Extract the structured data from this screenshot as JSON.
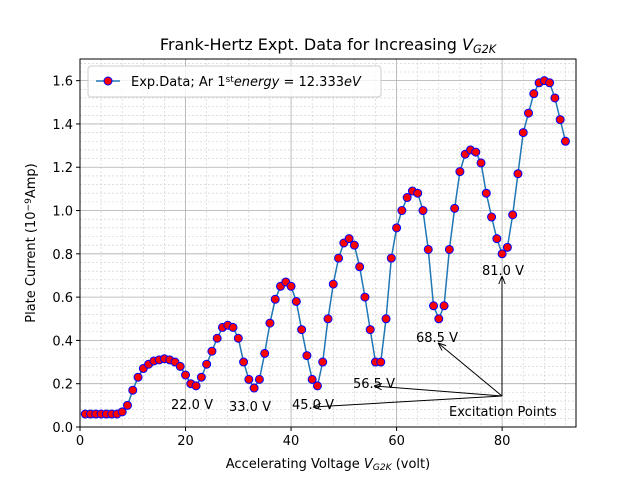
{
  "chart_data": {
    "type": "line",
    "title": [
      {
        "t": "Frank-Hertz Expt. Data for Increasing "
      },
      {
        "t": "V",
        "style": "italic"
      },
      {
        "t": "G2K",
        "style": "sub"
      }
    ],
    "xlabel": [
      {
        "t": "Accelerating Voltage "
      },
      {
        "t": "V",
        "style": "italic"
      },
      {
        "t": "G2K",
        "style": "sub"
      },
      {
        "t": " (volt)"
      }
    ],
    "ylabel": [
      {
        "t": "Plate Current (10"
      },
      {
        "t": "−9",
        "style": "sup"
      },
      {
        "t": "Amp)"
      }
    ],
    "x": [
      1,
      2,
      3,
      4,
      5,
      6,
      7,
      8,
      9,
      10,
      11,
      12,
      13,
      14,
      15,
      16,
      17,
      18,
      19,
      20,
      21,
      22,
      23,
      24,
      25,
      26,
      27,
      28,
      29,
      30,
      31,
      32,
      33,
      34,
      35,
      36,
      37,
      38,
      39,
      40,
      41,
      42,
      43,
      44,
      45,
      46,
      47,
      48,
      49,
      50,
      51,
      52,
      53,
      54,
      55,
      56,
      57,
      58,
      59,
      60,
      61,
      62,
      63,
      64,
      65,
      66,
      67,
      68,
      69,
      70,
      71,
      72,
      73,
      74,
      75,
      76,
      77,
      78,
      79,
      80,
      81,
      82,
      83,
      84,
      85,
      86,
      87,
      88,
      89,
      90,
      91,
      92
    ],
    "series": [
      {
        "name": [
          {
            "t": "Exp.Data; Ar 1"
          },
          {
            "t": "st",
            "style": "sup"
          },
          {
            "t": "energy",
            "style": "italic"
          },
          {
            "t": " = 12.333"
          },
          {
            "t": "eV",
            "style": "italic"
          }
        ],
        "color": "#1f77b4",
        "marker_color": "#ff0000",
        "marker_edge": "#0000ff",
        "values": [
          0.06,
          0.06,
          0.06,
          0.06,
          0.06,
          0.06,
          0.06,
          0.07,
          0.1,
          0.17,
          0.23,
          0.27,
          0.29,
          0.305,
          0.31,
          0.315,
          0.31,
          0.3,
          0.28,
          0.24,
          0.2,
          0.19,
          0.23,
          0.29,
          0.35,
          0.41,
          0.46,
          0.47,
          0.46,
          0.41,
          0.3,
          0.22,
          0.18,
          0.22,
          0.34,
          0.48,
          0.59,
          0.65,
          0.67,
          0.65,
          0.58,
          0.45,
          0.33,
          0.22,
          0.19,
          0.3,
          0.5,
          0.66,
          0.78,
          0.85,
          0.87,
          0.84,
          0.74,
          0.6,
          0.45,
          0.3,
          0.3,
          0.5,
          0.78,
          0.92,
          1.0,
          1.06,
          1.09,
          1.08,
          1.0,
          0.82,
          0.56,
          0.5,
          0.56,
          0.82,
          1.01,
          1.18,
          1.26,
          1.28,
          1.27,
          1.22,
          1.08,
          0.97,
          0.87,
          0.8,
          0.83,
          0.98,
          1.17,
          1.36,
          1.45,
          1.54,
          1.59,
          1.6,
          1.59,
          1.52,
          1.42,
          1.32
        ]
      }
    ],
    "xlim": [
      0,
      94
    ],
    "ylim": [
      0,
      1.7
    ],
    "xticks": [
      0,
      20,
      40,
      60,
      80
    ],
    "yticks": [
      {
        "value": 0,
        "label": "0.0"
      },
      0.2,
      0.4,
      0.6,
      0.8,
      {
        "value": 1,
        "label": "1.0"
      },
      1.2,
      1.4,
      1.6
    ],
    "grid": true,
    "minor_grid": true,
    "legend": "upper left",
    "annotations": [
      "22.0 V",
      "33.0 V",
      "45.0 V",
      "56.5 V",
      "68.5 V",
      "81.0 V",
      "Excitation Points"
    ]
  }
}
